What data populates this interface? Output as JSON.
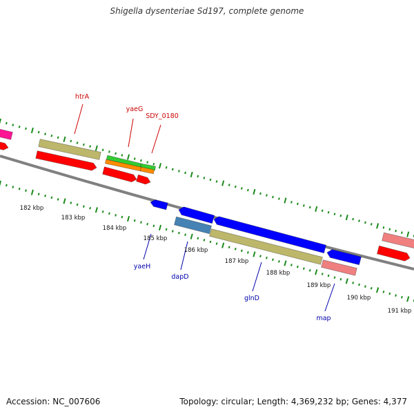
{
  "title": "Shigella dysenteriae Sd197, complete genome",
  "accession": "Accession: NC_007606",
  "summary": "Topology: circular; Length: 4,369,232 bp; Genes: 4,377",
  "colors": {
    "backbone": "#808080",
    "tick": "#1a8a1a",
    "red": "#ff0000",
    "khaki": "#bdb76b",
    "green": "#33cc33",
    "orange": "#ff8c00",
    "magenta": "#ff1493",
    "blue": "#0000ff",
    "steelblue": "#4682b4",
    "salmon": "#f08080",
    "label_forward": "#cc0000",
    "label_reverse": "#0000aa"
  },
  "scale_labels": [
    "182 kbp",
    "183 kbp",
    "184 kbp",
    "185 kbp",
    "186 kbp",
    "187 kbp",
    "188 kbp",
    "189 kbp",
    "190 kbp",
    "191 kbp"
  ],
  "gene_labels": [
    "htrA",
    "yaeG",
    "SDY_0180",
    "yaeH",
    "dapD",
    "glnD",
    "map"
  ]
}
